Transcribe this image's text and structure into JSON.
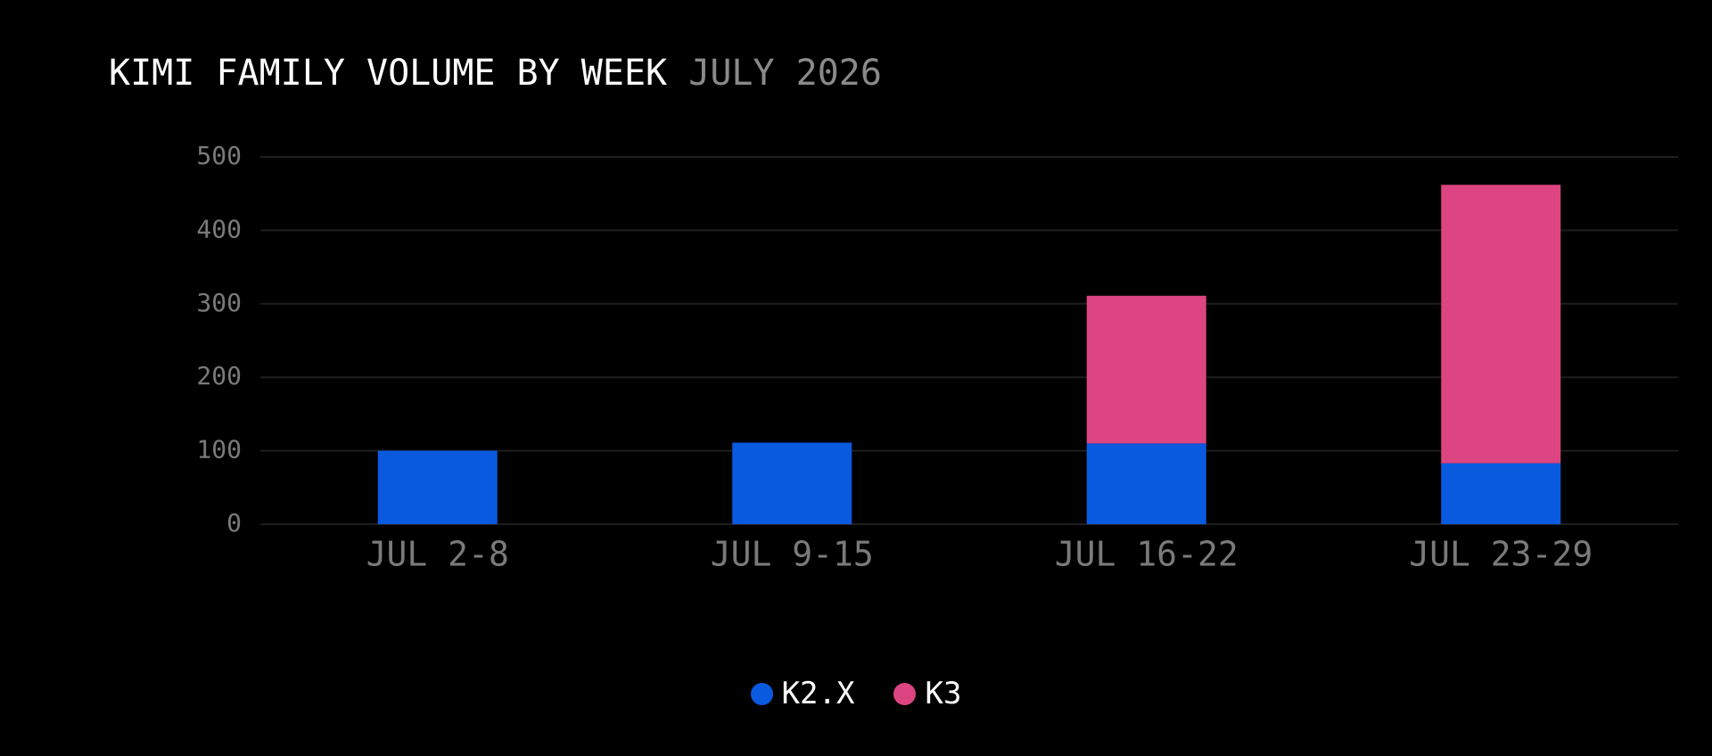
{
  "title": {
    "main": "KIMI FAMILY VOLUME BY WEEK",
    "sub": "JULY 2026"
  },
  "colors": {
    "background": "#000000",
    "grid": "#1e1e1e",
    "axis_text": "#7a7a7a",
    "k2x": "#0a5ae0",
    "k3": "#dd4482"
  },
  "chart_data": {
    "type": "bar",
    "stacked": true,
    "categories": [
      "JUL 2-8",
      "JUL 9-15",
      "JUL 16-22",
      "JUL 23-29"
    ],
    "series": [
      {
        "name": "K2.X",
        "values": [
          100,
          111,
          110,
          83
        ],
        "color": "#0a5ae0"
      },
      {
        "name": "K3",
        "values": [
          0,
          0,
          201,
          379
        ],
        "color": "#dd4482"
      }
    ],
    "ylim": [
      0,
      500
    ],
    "yticks": [
      0,
      100,
      200,
      300,
      400,
      500
    ],
    "grid": true,
    "legend_position": "bottom-center"
  }
}
